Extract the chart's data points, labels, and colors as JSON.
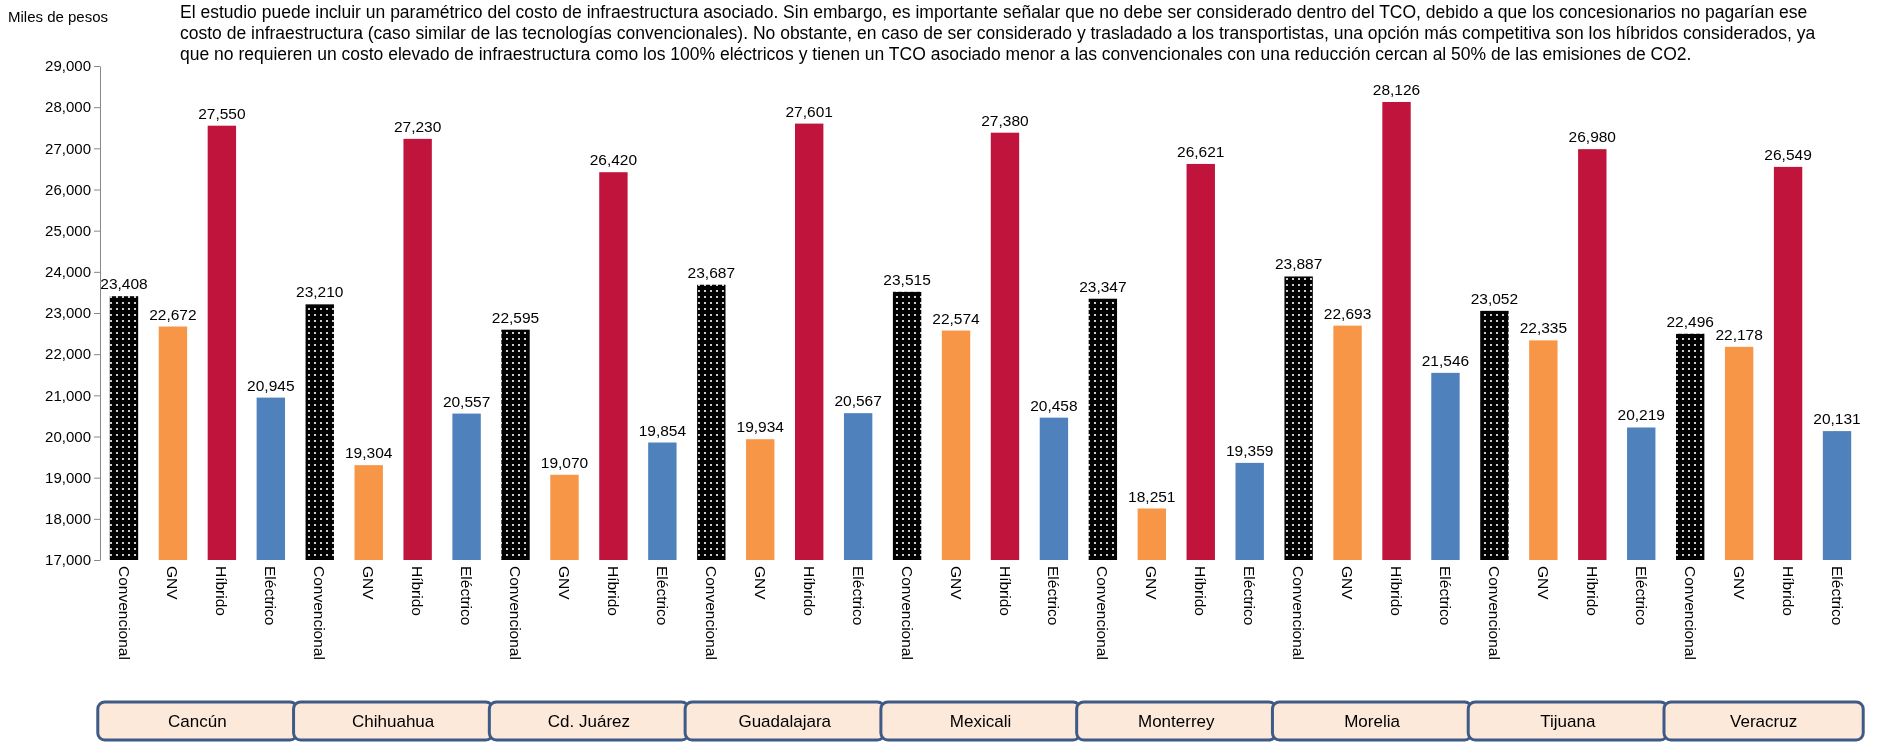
{
  "chart_data": {
    "type": "bar",
    "title": "El estudio puede incluir un paramétrico del costo de infraestructura asociado. Sin embargo, es importante señalar que no debe ser considerado dentro del TCO, debido a que los concesionarios no pagarían ese costo de infraestructura (caso similar de las tecnologías convencionales). No obstante, en caso de ser considerado y trasladado a los transportistas, una opción más competitiva son los híbridos considerados, ya que no requieren un costo elevado de infraestructura como los 100% eléctricos y tienen un TCO asociado menor a las convencionales con una reducción cercan al 50% de las emisiones de CO2.",
    "ylabel": "Miles de pesos",
    "categories": [
      "Convencional",
      "GNV",
      "Híbrido",
      "Eléctrico",
      "Convencional",
      "GNV",
      "Híbrido",
      "Eléctrico",
      "Convencional",
      "GNV",
      "Híbrido",
      "Eléctrico",
      "Convencional",
      "GNV",
      "Híbrido",
      "Eléctrico",
      "Convencional",
      "GNV",
      "Híbrido",
      "Eléctrico",
      "Convencional",
      "GNV",
      "Híbrido",
      "Eléctrico",
      "Convencional",
      "GNV",
      "Híbrido",
      "Eléctrico",
      "Convencional",
      "GNV",
      "Híbrido",
      "Eléctrico",
      "Convencional",
      "GNV",
      "Híbrido",
      "Eléctrico"
    ],
    "values": [
      23408,
      22672,
      27550,
      20945,
      23210,
      19304,
      27230,
      20557,
      22595,
      19070,
      26420,
      19854,
      23687,
      19934,
      27601,
      20567,
      23515,
      22574,
      27380,
      20458,
      23347,
      18251,
      26621,
      19359,
      23887,
      22693,
      28126,
      21546,
      23052,
      22335,
      26980,
      20219,
      22496,
      22178,
      26549,
      20131
    ],
    "colors": [
      "#000000",
      "#f79646",
      "#c0143c",
      "#4f81bd",
      "#000000",
      "#f79646",
      "#c0143c",
      "#4f81bd",
      "#000000",
      "#f79646",
      "#c0143c",
      "#4f81bd",
      "#000000",
      "#f79646",
      "#c0143c",
      "#4f81bd",
      "#000000",
      "#f79646",
      "#c0143c",
      "#4f81bd",
      "#000000",
      "#f79646",
      "#c0143c",
      "#4f81bd",
      "#000000",
      "#f79646",
      "#c0143c",
      "#4f81bd",
      "#000000",
      "#f79646",
      "#c0143c",
      "#4f81bd",
      "#000000",
      "#f79646",
      "#c0143c",
      "#4f81bd"
    ],
    "ylim": [
      17000,
      29000
    ],
    "yticks": [
      {
        "value": 17000,
        "label": "17,000"
      },
      {
        "value": 18000,
        "label": "18,000"
      },
      {
        "value": 19000,
        "label": "19,000"
      },
      {
        "value": 20000,
        "label": "20,000"
      },
      {
        "value": 21000,
        "label": "21,000"
      },
      {
        "value": 22000,
        "label": "22,000"
      },
      {
        "value": 23000,
        "label": "23,000"
      },
      {
        "value": 24000,
        "label": "24,000"
      },
      {
        "value": 25000,
        "label": "25,000"
      },
      {
        "value": 26000,
        "label": "26,000"
      },
      {
        "value": 27000,
        "label": "27,000"
      },
      {
        "value": 28000,
        "label": "28,000"
      },
      {
        "value": 29000,
        "label": "29,000"
      }
    ],
    "value_labels": [
      "23,408",
      "22,672",
      "27,550",
      "20,945",
      "23,210",
      "19,304",
      "27,230",
      "20,557",
      "22,595",
      "19,070",
      "26,420",
      "19,854",
      "23,687",
      "19,934",
      "27,601",
      "20,567",
      "23,515",
      "22,574",
      "27,380",
      "20,458",
      "23,347",
      "18,251",
      "26,621",
      "19,359",
      "23,887",
      "22,693",
      "28,126",
      "21,546",
      "23,052",
      "22,335",
      "26,980",
      "20,219",
      "22,496",
      "22,178",
      "26,549",
      "20,131"
    ],
    "annotations": [
      "Cancún",
      "Chihuahua",
      "Cd. Juárez",
      "Guadalajara",
      "Mexicali",
      "Monterrey",
      "Morelia",
      "Tijuana",
      "Veracruz"
    ]
  }
}
